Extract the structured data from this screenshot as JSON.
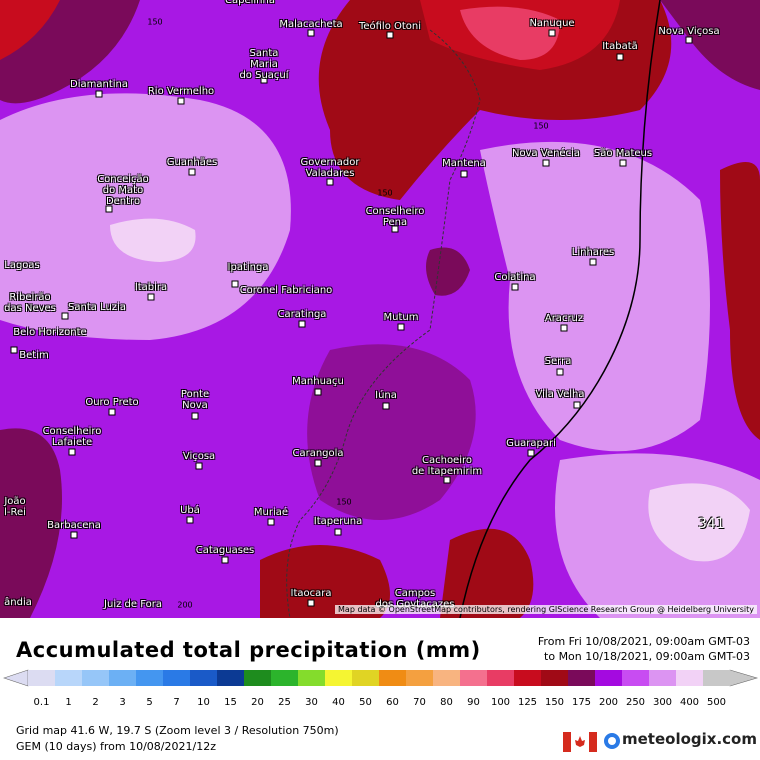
{
  "map": {
    "cities": [
      "Capelinha",
      "Malacacheta",
      "Teófilo Otoni",
      "Nanuque",
      "Itabatã",
      "Nova Viçosa",
      "Santa\nMaria\ndo Suaçuí",
      "Diamantina",
      "Rio Vermelho",
      "Guanhães",
      "Governador\nValadares",
      "Mantena",
      "Nova Venécia",
      "São Mateus",
      "Conceição\ndo Mato\nDentro",
      "Conselheiro\nPena",
      "Lagoas",
      "Linhares",
      "Ipatinga",
      "Colatina",
      "Itabira",
      "Coronel Fabriciano",
      "Ribeirão\ndas Neves",
      "Santa Luzia",
      "Caratinga",
      "Mutum",
      "Aracruz",
      "Belo Horizonte",
      "Betim",
      "Serra",
      "Manhuaçu",
      "Vila Velha",
      "Iúna",
      "Ouro Preto",
      "Ponte\nNova",
      "Conselheiro\nLafaiete",
      "Guarapari",
      "Viçosa",
      "Carangola",
      "Cachoeiro\nde Itapemirim",
      "João\nl-Rei",
      "Muriaé",
      "Ubá",
      "Barbacena",
      "Itaperuna",
      "Cataguases",
      "Itaocara",
      "Campos\ndos Goytacazes",
      "Juiz de Fora",
      "ândia"
    ],
    "contour_labels": [
      "150",
      "150",
      "150",
      "150",
      "200"
    ],
    "max_value": "341",
    "attribution": "Map data © OpenStreetMap contributors, rendering GIScience Research Group @ Heidelberg University"
  },
  "legend": {
    "title": "Accumulated total precipitation (mm)",
    "from": "From Fri 10/08/2021, 09:00am GMT-03",
    "to": "to Mon 10/18/2021, 09:00am GMT-03",
    "steps": [
      {
        "label": "0.1",
        "color": "#dcdcf2"
      },
      {
        "label": "1",
        "color": "#b8d6fa"
      },
      {
        "label": "2",
        "color": "#96c6f8"
      },
      {
        "label": "3",
        "color": "#6cb0f4"
      },
      {
        "label": "5",
        "color": "#4496f0"
      },
      {
        "label": "7",
        "color": "#2a7ae6"
      },
      {
        "label": "10",
        "color": "#1a5ac8"
      },
      {
        "label": "15",
        "color": "#0c3a94"
      },
      {
        "label": "20",
        "color": "#1e8c1e"
      },
      {
        "label": "25",
        "color": "#2cb42c"
      },
      {
        "label": "30",
        "color": "#84dc2c"
      },
      {
        "label": "40",
        "color": "#f5f532"
      },
      {
        "label": "50",
        "color": "#e0d424"
      },
      {
        "label": "60",
        "color": "#f08c14"
      },
      {
        "label": "70",
        "color": "#f4a040"
      },
      {
        "label": "80",
        "color": "#f8b480"
      },
      {
        "label": "90",
        "color": "#f4708e"
      },
      {
        "label": "100",
        "color": "#e83c64"
      },
      {
        "label": "125",
        "color": "#c80c1e"
      },
      {
        "label": "150",
        "color": "#a00a16"
      },
      {
        "label": "175",
        "color": "#7a0a5a"
      },
      {
        "label": "200",
        "color": "#a40ae0"
      },
      {
        "label": "250",
        "color": "#c84cf2"
      },
      {
        "label": "300",
        "color": "#dc94f2"
      },
      {
        "label": "400",
        "color": "#f2d2f6"
      },
      {
        "label": "500",
        "color": "#c8c8c8"
      }
    ]
  },
  "footer": {
    "grid": "Grid map 41.6 W, 19.7 S (Zoom level 3 / Resolution 750m)",
    "model": "GEM (10 days) from 10/08/2021/12z",
    "brand": "meteologix.com"
  }
}
